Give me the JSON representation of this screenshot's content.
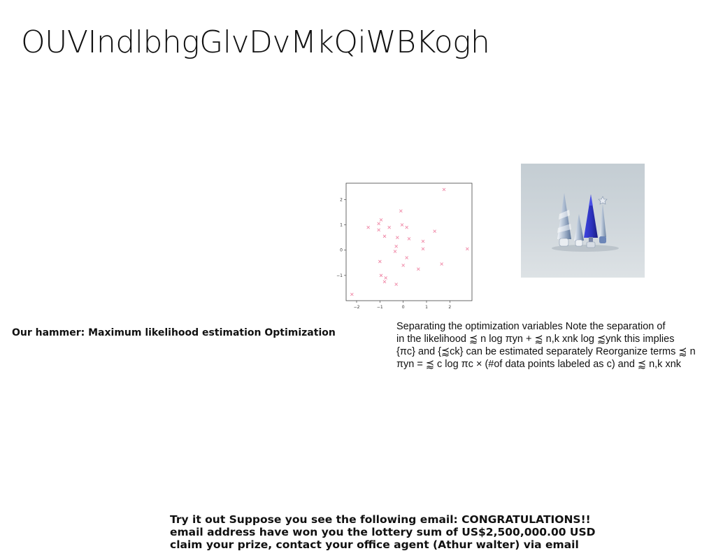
{
  "slide": {
    "title": "OUVIndlbhgGlvDvMkQiWBKogh",
    "subtitle": "Our hammer: Maximum likelihood estimation Optimization",
    "body_lines": [
      "Separating the optimization variables Note the separation of",
      "in the likelihood ⪷ n log πyn + ⪷ n,k xnk log ⪷ynk this implies",
      "{πc} and {⪷ck} can be estimated separately Reorganize terms ⪷ n",
      "πyn = ⪷ c log πc × (#of data points labeled as c) and ⪷ n,k xnk"
    ],
    "email_lines": [
      "Try it out Suppose you see the following email: CONGRATULATIONS!!",
      "email address have won you the lottery sum of US$2,500,000.00 USD",
      "claim your prize, contact your office agent (Athur walter) via email"
    ]
  },
  "scatter_plot": {
    "x_ticks": [
      "−2",
      "−1",
      "0",
      "1",
      "2"
    ],
    "y_ticks": [
      "2",
      "1",
      "0",
      "−1"
    ],
    "marker_color": "#f08aa8",
    "points": [
      [
        1.75,
        2.4
      ],
      [
        -0.1,
        1.55
      ],
      [
        -0.95,
        1.2
      ],
      [
        -1.05,
        1.05
      ],
      [
        -0.05,
        1.0
      ],
      [
        0.15,
        0.9
      ],
      [
        -1.5,
        0.9
      ],
      [
        -0.6,
        0.9
      ],
      [
        -1.05,
        0.8
      ],
      [
        1.35,
        0.75
      ],
      [
        -0.8,
        0.55
      ],
      [
        -0.25,
        0.5
      ],
      [
        0.25,
        0.45
      ],
      [
        0.85,
        0.35
      ],
      [
        -0.3,
        0.15
      ],
      [
        0.85,
        0.05
      ],
      [
        -0.35,
        -0.05
      ],
      [
        2.75,
        0.05
      ],
      [
        0.15,
        -0.3
      ],
      [
        -1.0,
        -0.45
      ],
      [
        1.65,
        -0.55
      ],
      [
        0.0,
        -0.6
      ],
      [
        0.65,
        -0.75
      ],
      [
        -0.95,
        -1.0
      ],
      [
        -0.75,
        -1.1
      ],
      [
        -0.8,
        -1.25
      ],
      [
        -0.3,
        -1.35
      ],
      [
        -2.2,
        -1.75
      ]
    ],
    "x_range": [
      -2.45,
      2.95
    ],
    "y_range": [
      -2.0,
      2.65
    ]
  },
  "photo": {
    "subject": "miniature winter trees"
  },
  "colors": {
    "text": "#111111",
    "photo_bg": "#c9d2d8",
    "tree_blue": "#2f35c8"
  }
}
